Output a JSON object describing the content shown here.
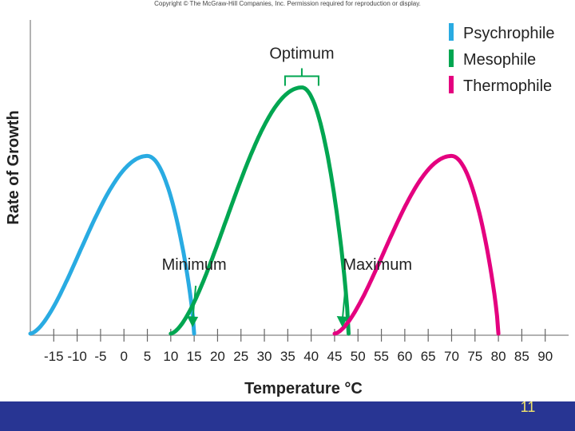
{
  "copyright": "Copyright © The McGraw-Hill Companies, Inc. Permission required for reproduction or display.",
  "slide_number": "11",
  "chart_data": {
    "type": "line",
    "title": "",
    "xlabel": "Temperature °C",
    "ylabel": "Rate of Growth",
    "xlim": [
      -20,
      95
    ],
    "x_ticks": [
      -15,
      -10,
      -5,
      0,
      5,
      10,
      15,
      20,
      25,
      30,
      35,
      40,
      45,
      50,
      55,
      60,
      65,
      70,
      75,
      80,
      85,
      90
    ],
    "grid": false,
    "legend_position": "top-right",
    "series": [
      {
        "name": "Psychrophile",
        "color": "#29abe2",
        "minimum": -20,
        "optimum": 5,
        "maximum": 15,
        "peak": 0.7
      },
      {
        "name": "Mesophile",
        "color": "#00a651",
        "minimum": 10,
        "optimum": 38,
        "maximum": 48,
        "peak": 0.97
      },
      {
        "name": "Thermophile",
        "color": "#e4007f",
        "minimum": 45,
        "optimum": 70,
        "maximum": 80,
        "peak": 0.7
      }
    ],
    "annotations": [
      {
        "text": "Optimum",
        "x": 38
      },
      {
        "text": "Minimum",
        "x": 15
      },
      {
        "text": "Maximum",
        "x": 47
      }
    ]
  }
}
